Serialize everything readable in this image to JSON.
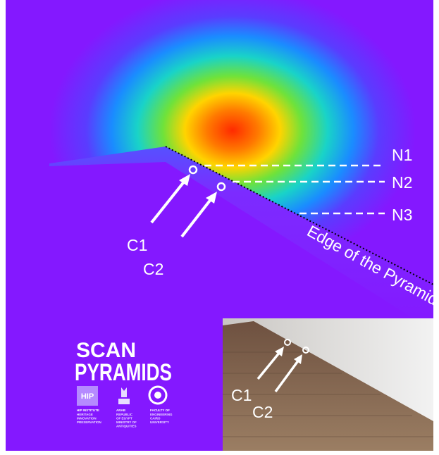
{
  "annotations": {
    "n1": "N1",
    "n2": "N2",
    "n3": "N3",
    "c1": "C1",
    "c2": "C2",
    "edge": "Edge of the Pyramid"
  },
  "logo": {
    "line1": "SCAN",
    "line2": "PYRAMIDS",
    "hip_mark": "HIP",
    "partners": [
      {
        "name": "HIP INSTITUTE",
        "detail": [
          "HERITAGE",
          "INNOVATION",
          "PRESERVATION"
        ]
      },
      {
        "name": "ARAB",
        "detail": [
          "REPUBLIC",
          "OF EGYPT",
          "MINISTRY OF",
          "ANTIQUITIES"
        ]
      },
      {
        "name": "FACULTY OF",
        "detail": [
          "ENGINEERING",
          "CAIRO",
          "UNIVERSITY"
        ]
      }
    ]
  },
  "inset": {
    "c1": "C1",
    "c2": "C2"
  }
}
